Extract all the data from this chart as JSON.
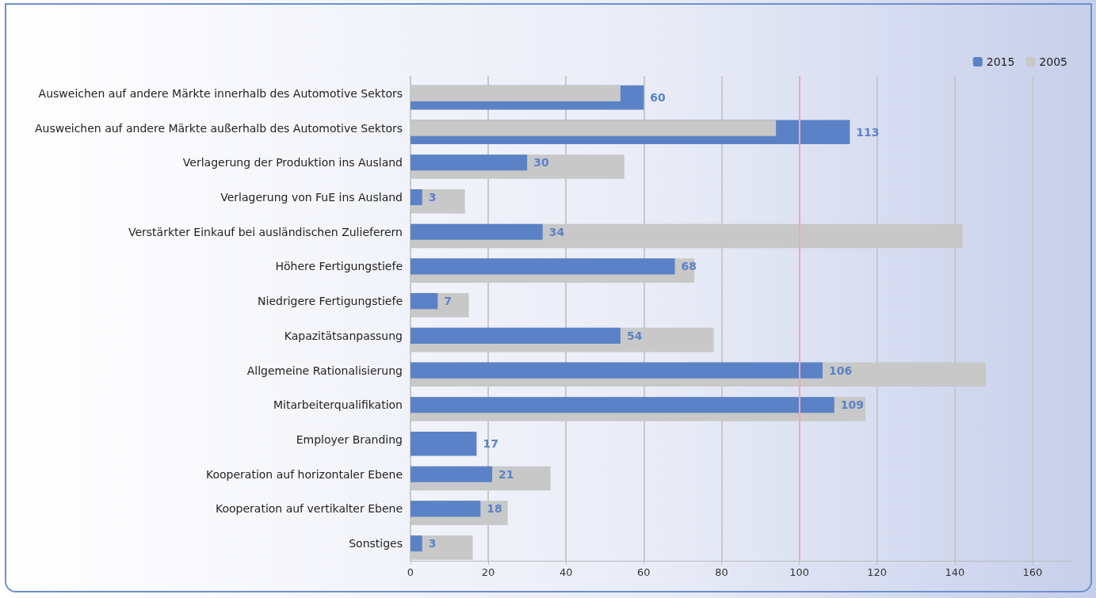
{
  "chart_data": {
    "type": "bar",
    "orientation": "horizontal",
    "categories": [
      "Ausweichen auf andere Märkte innerhalb des Automotive Sektors",
      "Ausweichen auf andere Märkte außerhalb des Automotive Sektors",
      "Verlagerung der Produktion ins Ausland",
      "Verlagerung von FuE ins Ausland",
      "Verstärkter Einkauf bei ausländischen Zulieferern",
      "Höhere Fertigungstiefe",
      "Niedrigere Fertigungstiefe",
      "Kapazitätsanpassung",
      "Allgemeine Rationalisierung",
      "Mitarbeiterqualifikation",
      "Employer Branding",
      "Kooperation auf horizontaler Ebene",
      "Kooperation auf vertikalter Ebene",
      "Sonstiges"
    ],
    "series": [
      {
        "name": "2015",
        "color": "#5b82c6",
        "values": [
          60,
          113,
          30,
          3,
          34,
          68,
          7,
          54,
          106,
          109,
          17,
          21,
          18,
          3
        ],
        "value_labels": [
          "60",
          "113",
          "30",
          "3",
          "34",
          "68",
          "7",
          "54",
          "106",
          "109",
          "17",
          "21",
          "18",
          "3"
        ]
      },
      {
        "name": "2005",
        "color": "#c8c8c8",
        "values": [
          54,
          94,
          55,
          14,
          142,
          73,
          15,
          78,
          148,
          117,
          null,
          36,
          25,
          16
        ]
      }
    ],
    "xlim": [
      0,
      170
    ],
    "xticks": [
      0,
      20,
      40,
      60,
      80,
      100,
      120,
      140,
      160
    ],
    "ref_lines": [
      {
        "axis": "x",
        "value": 100,
        "color": "#f4a6b8"
      }
    ],
    "grid": "x",
    "legend": "top right"
  }
}
